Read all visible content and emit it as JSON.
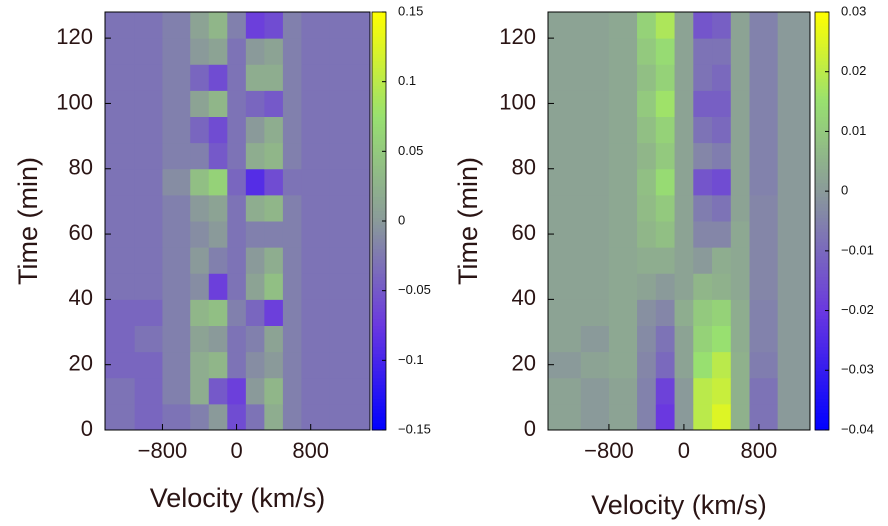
{
  "chart_data": [
    {
      "type": "heatmap",
      "xlabel": "Velocity (km/s)",
      "ylabel": "Time (min)",
      "xlim": [
        -1420,
        1440
      ],
      "ylim": [
        0,
        128
      ],
      "xticks": [
        {
          "value": -800,
          "label": "−800"
        },
        0,
        800
      ],
      "yticks": [
        0,
        20,
        40,
        60,
        80,
        100,
        120
      ],
      "x_bins": [
        -1420,
        -1100,
        -800,
        -500,
        -300,
        -100,
        100,
        300,
        500,
        700,
        1000,
        1440
      ],
      "y_bins": [
        0,
        8,
        16,
        24,
        32,
        40,
        48,
        56,
        64,
        72,
        80,
        88,
        96,
        104,
        112,
        120,
        128
      ],
      "zlim": [
        -0.15,
        0.15
      ],
      "zticks": [
        {
          "value": -0.15,
          "label": "−0.15"
        },
        {
          "value": -0.1,
          "label": "−0.1"
        },
        {
          "value": -0.05,
          "label": "−0.05"
        },
        0,
        0.05,
        0.1,
        0.15
      ],
      "colormap": [
        "#0000ff",
        "#6a38e0",
        "#8a9a9a",
        "#98e070",
        "#ffff00"
      ],
      "values": [
        [
          -0.03,
          -0.04,
          -0.03,
          -0.02,
          0.0,
          -0.06,
          -0.03,
          0.02,
          -0.02,
          -0.03,
          -0.03
        ],
        [
          -0.03,
          -0.04,
          -0.02,
          0.02,
          -0.05,
          -0.07,
          0.0,
          0.03,
          -0.02,
          -0.03,
          -0.03
        ],
        [
          -0.04,
          -0.04,
          -0.02,
          0.02,
          0.03,
          -0.03,
          -0.01,
          0.0,
          -0.02,
          -0.03,
          -0.03
        ],
        [
          -0.04,
          -0.03,
          -0.02,
          0.01,
          0.0,
          -0.03,
          -0.02,
          0.01,
          -0.02,
          -0.03,
          -0.03
        ],
        [
          -0.04,
          -0.04,
          -0.02,
          0.03,
          0.04,
          -0.02,
          -0.04,
          -0.07,
          -0.02,
          -0.03,
          -0.03
        ],
        [
          -0.03,
          -0.03,
          -0.02,
          -0.01,
          -0.07,
          -0.03,
          0.01,
          0.04,
          -0.02,
          -0.03,
          -0.03
        ],
        [
          -0.03,
          -0.03,
          -0.02,
          0.0,
          -0.02,
          -0.03,
          0.0,
          0.02,
          -0.02,
          -0.03,
          -0.03
        ],
        [
          -0.03,
          -0.03,
          -0.02,
          -0.01,
          0.0,
          -0.03,
          -0.02,
          -0.02,
          -0.02,
          -0.03,
          -0.03
        ],
        [
          -0.03,
          -0.03,
          -0.02,
          0.0,
          0.01,
          -0.03,
          0.02,
          0.03,
          -0.02,
          -0.03,
          -0.03
        ],
        [
          -0.03,
          -0.03,
          -0.01,
          0.04,
          0.06,
          -0.04,
          -0.09,
          -0.06,
          -0.03,
          -0.03,
          -0.03
        ],
        [
          -0.03,
          -0.03,
          -0.02,
          -0.02,
          -0.05,
          -0.03,
          0.02,
          0.03,
          -0.02,
          -0.03,
          -0.03
        ],
        [
          -0.03,
          -0.03,
          -0.02,
          -0.04,
          -0.06,
          -0.03,
          0.0,
          0.02,
          -0.02,
          -0.03,
          -0.03
        ],
        [
          -0.03,
          -0.03,
          -0.02,
          0.01,
          0.03,
          -0.03,
          -0.04,
          -0.05,
          -0.02,
          -0.03,
          -0.03
        ],
        [
          -0.03,
          -0.03,
          -0.02,
          -0.04,
          -0.06,
          -0.03,
          0.02,
          0.02,
          -0.02,
          -0.03,
          -0.03
        ],
        [
          -0.03,
          -0.03,
          -0.02,
          0.0,
          0.01,
          -0.03,
          0.0,
          0.01,
          -0.02,
          -0.03,
          -0.03
        ],
        [
          -0.03,
          -0.03,
          -0.02,
          0.01,
          0.03,
          -0.02,
          -0.07,
          -0.06,
          -0.02,
          -0.03,
          -0.03
        ]
      ]
    },
    {
      "type": "heatmap",
      "xlabel": "Velocity (km/s)",
      "ylabel": "Time (min)",
      "xlim": [
        -1450,
        1345
      ],
      "ylim": [
        0,
        128
      ],
      "xticks": [
        {
          "value": -800,
          "label": "−800"
        },
        0,
        800
      ],
      "yticks": [
        0,
        20,
        40,
        60,
        80,
        100,
        120
      ],
      "x_bins": [
        -1450,
        -1100,
        -800,
        -500,
        -300,
        -100,
        100,
        300,
        500,
        700,
        1000,
        1345
      ],
      "y_bins": [
        0,
        8,
        16,
        24,
        32,
        40,
        48,
        56,
        64,
        72,
        80,
        88,
        96,
        104,
        112,
        120,
        128
      ],
      "zlim": [
        -0.04,
        0.03
      ],
      "zticks": [
        {
          "value": -0.04,
          "label": "−0.04"
        },
        {
          "value": -0.03,
          "label": "−0.03"
        },
        {
          "value": -0.02,
          "label": "−0.02"
        },
        {
          "value": -0.01,
          "label": "−0.01"
        },
        0,
        0.01,
        0.02,
        0.03
      ],
      "colormap": [
        "#0000ff",
        "#6a38e0",
        "#8a9a9a",
        "#98e070",
        "#ffff00"
      ],
      "values": [
        [
          0.002,
          0.0,
          0.002,
          -0.005,
          -0.02,
          0.0,
          0.02,
          0.025,
          0.005,
          -0.008,
          0.0
        ],
        [
          0.002,
          0.0,
          0.002,
          -0.005,
          -0.018,
          0.0,
          0.02,
          0.022,
          0.005,
          -0.008,
          0.0
        ],
        [
          0.0,
          0.002,
          0.003,
          -0.004,
          -0.01,
          0.002,
          0.015,
          0.02,
          0.005,
          -0.006,
          0.0
        ],
        [
          0.002,
          0.0,
          0.003,
          -0.003,
          -0.008,
          0.002,
          0.012,
          0.015,
          0.004,
          -0.005,
          0.0
        ],
        [
          0.002,
          0.002,
          0.003,
          -0.002,
          -0.004,
          0.004,
          0.01,
          0.012,
          0.004,
          -0.005,
          0.0
        ],
        [
          0.002,
          0.002,
          0.003,
          0.002,
          0.0,
          0.002,
          0.006,
          0.005,
          0.003,
          -0.004,
          0.0
        ],
        [
          0.002,
          0.002,
          0.003,
          0.004,
          0.004,
          0.002,
          0.0,
          0.004,
          0.003,
          -0.004,
          0.0
        ],
        [
          0.002,
          0.002,
          0.003,
          0.006,
          0.008,
          0.002,
          -0.004,
          -0.004,
          0.003,
          -0.004,
          0.0
        ],
        [
          0.002,
          0.002,
          0.003,
          0.007,
          0.01,
          0.002,
          -0.006,
          -0.008,
          0.002,
          -0.004,
          0.0
        ],
        [
          0.002,
          0.002,
          0.003,
          0.008,
          0.014,
          0.002,
          -0.014,
          -0.016,
          0.002,
          -0.005,
          0.0
        ],
        [
          0.002,
          0.002,
          0.003,
          0.006,
          0.01,
          0.002,
          -0.004,
          -0.006,
          0.002,
          -0.005,
          0.0
        ],
        [
          0.002,
          0.002,
          0.003,
          0.008,
          0.012,
          0.002,
          -0.008,
          -0.01,
          0.002,
          -0.005,
          0.0
        ],
        [
          0.002,
          0.002,
          0.003,
          0.01,
          0.016,
          0.002,
          -0.012,
          -0.012,
          0.002,
          -0.005,
          0.0
        ],
        [
          0.002,
          0.002,
          0.003,
          0.008,
          0.012,
          0.002,
          -0.008,
          -0.01,
          0.002,
          -0.005,
          0.0
        ],
        [
          0.002,
          0.002,
          0.003,
          0.01,
          0.014,
          0.002,
          -0.008,
          -0.008,
          0.002,
          -0.005,
          0.0
        ],
        [
          0.002,
          0.002,
          0.003,
          0.012,
          0.018,
          0.002,
          -0.014,
          -0.012,
          0.002,
          -0.005,
          0.0
        ]
      ]
    }
  ]
}
